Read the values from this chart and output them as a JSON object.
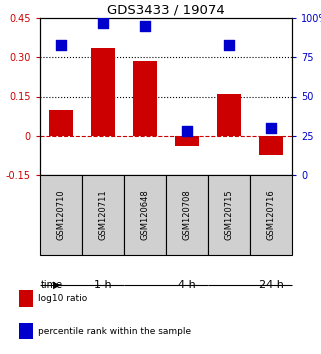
{
  "title": "GDS3433 / 19074",
  "samples": [
    "GSM120710",
    "GSM120711",
    "GSM120648",
    "GSM120708",
    "GSM120715",
    "GSM120716"
  ],
  "log10_ratio": [
    0.1,
    0.335,
    0.285,
    -0.04,
    0.16,
    -0.072
  ],
  "percentile_rank": [
    83,
    97,
    95,
    28,
    83,
    30
  ],
  "time_groups": [
    {
      "label": "1 h",
      "span": [
        0,
        2
      ],
      "color": "#c8f0c0"
    },
    {
      "label": "4 h",
      "span": [
        2,
        4
      ],
      "color": "#88d878"
    },
    {
      "label": "24 h",
      "span": [
        4,
        6
      ],
      "color": "#44cc44"
    }
  ],
  "bar_color": "#cc0000",
  "dot_color": "#0000cc",
  "ylim_left": [
    -0.15,
    0.45
  ],
  "ylim_right": [
    0,
    100
  ],
  "yticks_left": [
    -0.15,
    0.0,
    0.15,
    0.3,
    0.45
  ],
  "ytick_labels_left": [
    "-0.15",
    "0",
    "0.15",
    "0.30",
    "0.45"
  ],
  "yticks_right": [
    0,
    25,
    50,
    75,
    100
  ],
  "ytick_labels_right": [
    "0",
    "25",
    "50",
    "75",
    "100%"
  ],
  "hlines": [
    0.15,
    0.3
  ],
  "bar_width": 0.55,
  "dot_size": 45,
  "legend_items": [
    {
      "color": "#cc0000",
      "label": "log10 ratio"
    },
    {
      "color": "#0000cc",
      "label": "percentile rank within the sample"
    }
  ]
}
